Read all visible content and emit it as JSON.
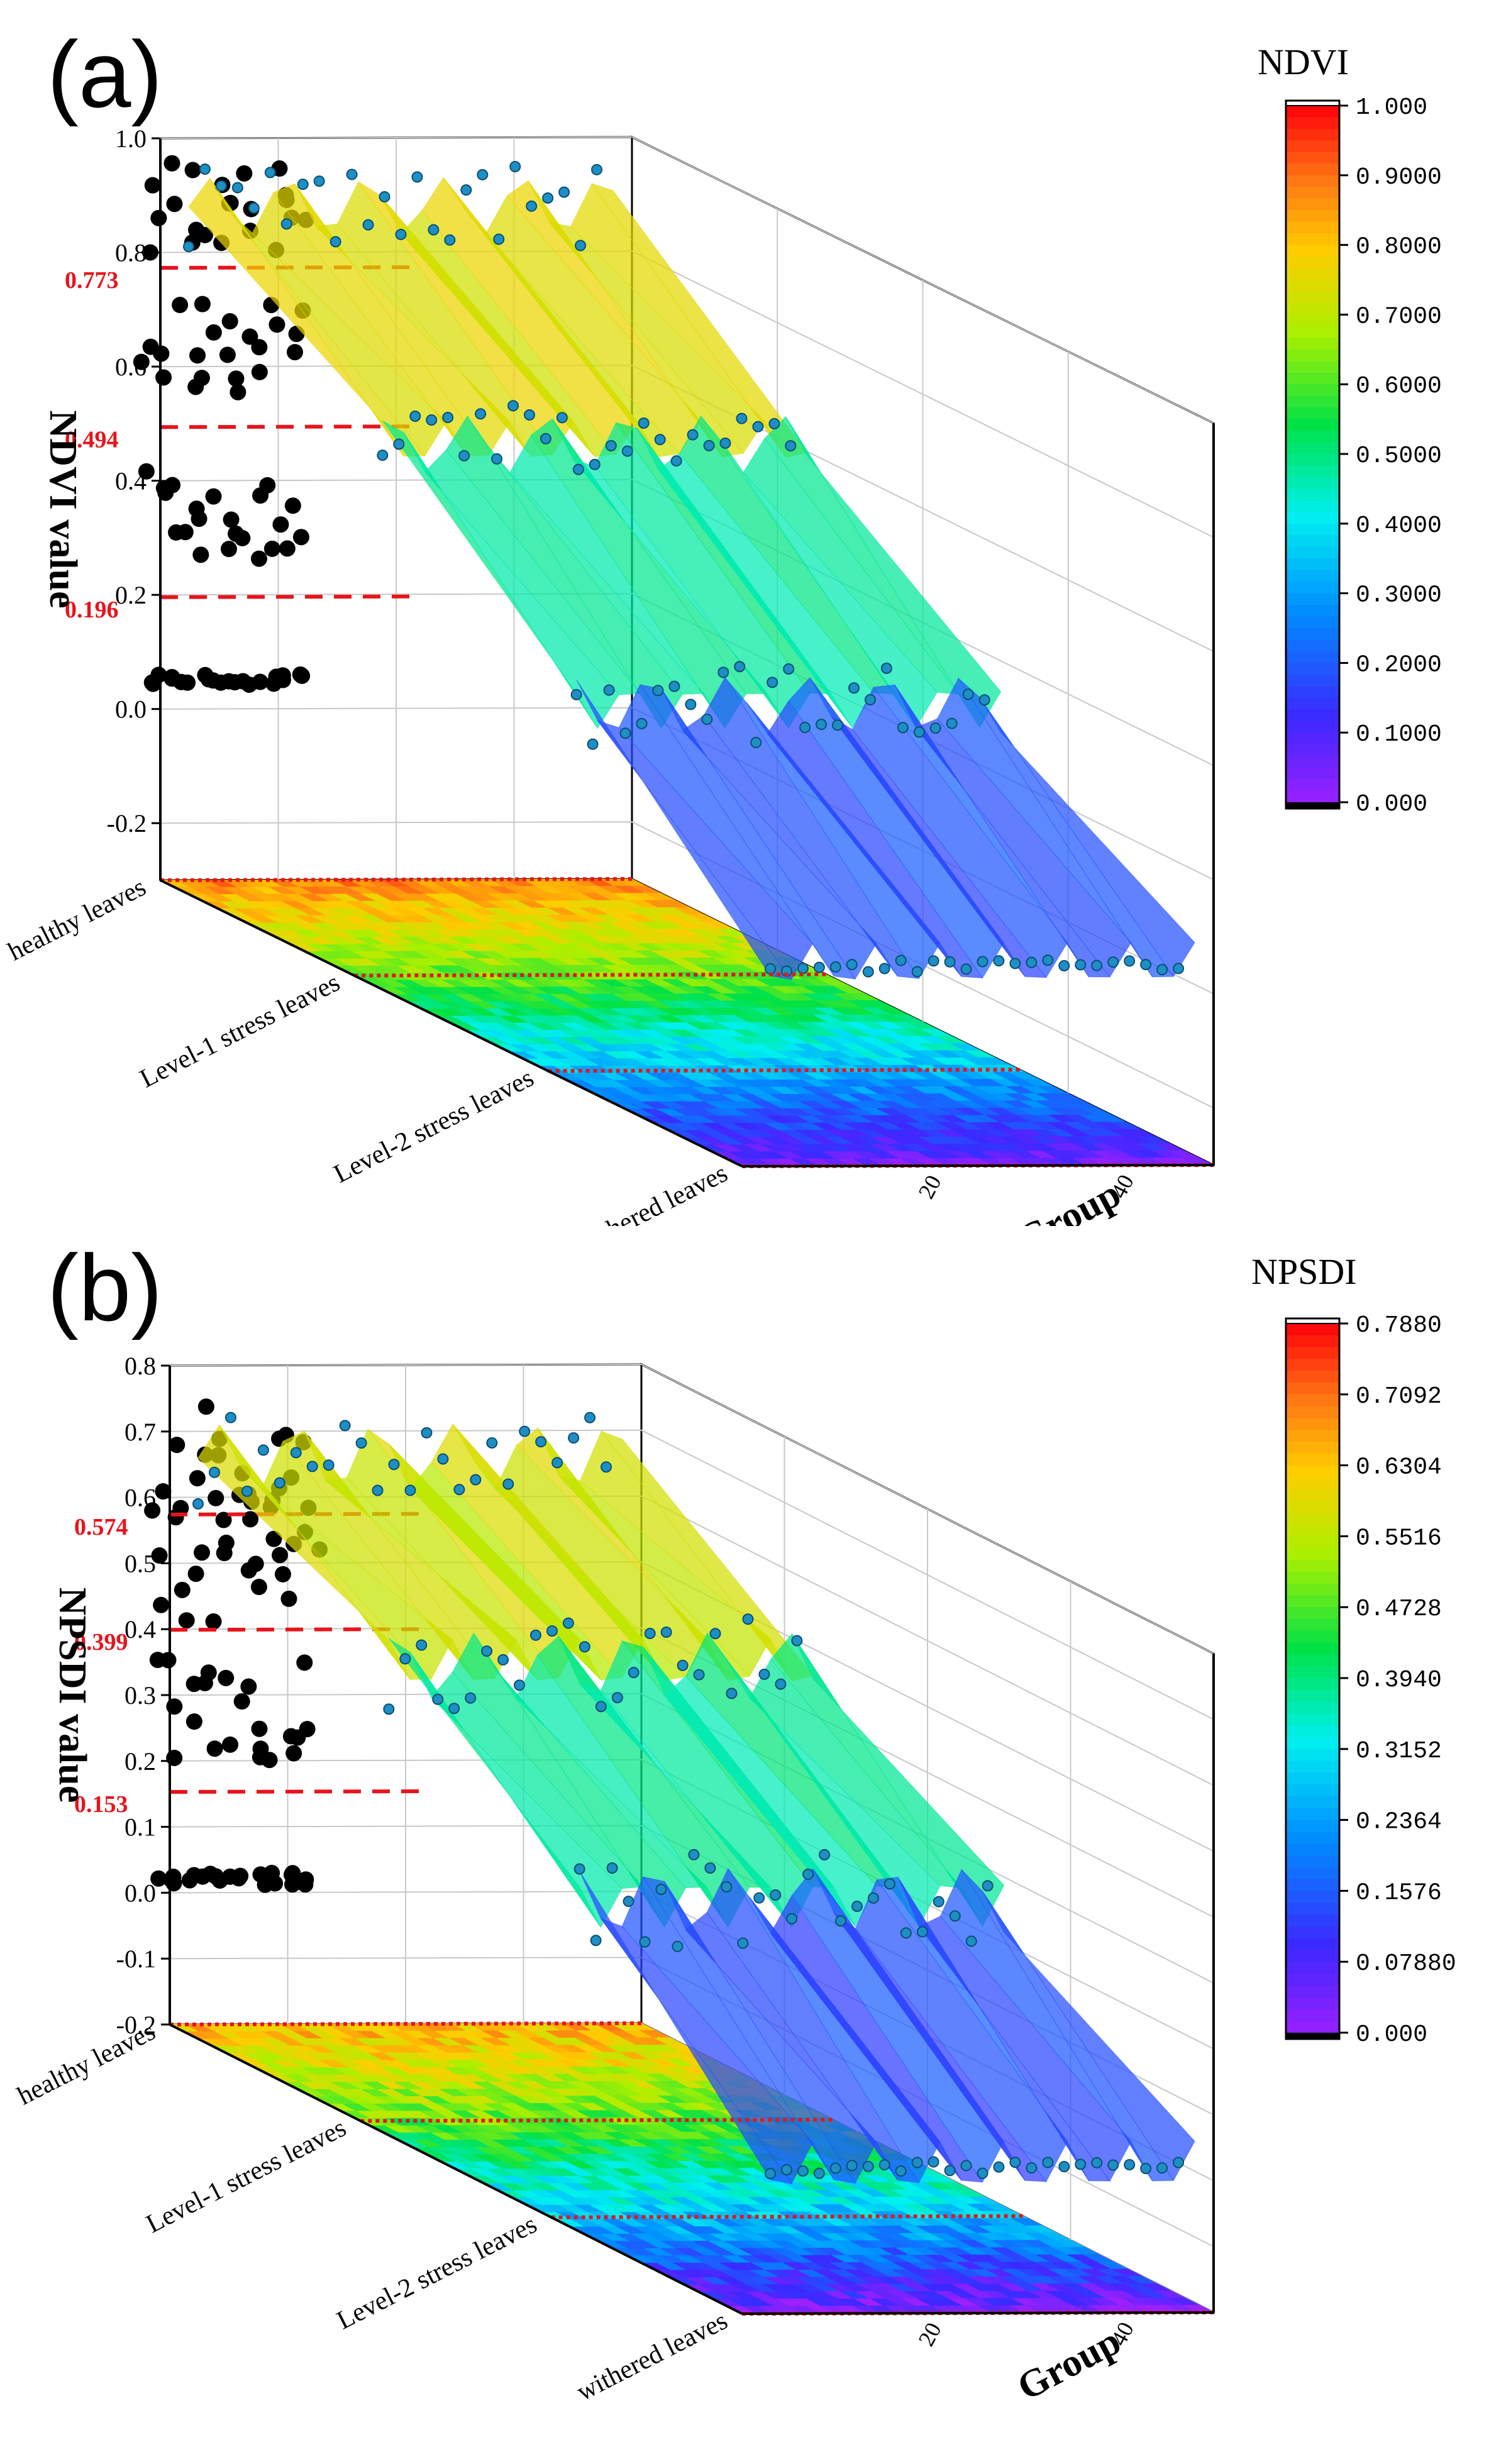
{
  "chart_data": [
    {
      "type": "surface3d",
      "panel_label": "(a)",
      "metric": "NDVI",
      "zlabel": "NDVI value",
      "ylabel": "Group",
      "categories": [
        "healthy leaves",
        "Level-1 stress leaves",
        "Level-2 stress leaves",
        "withered leaves"
      ],
      "z_ticks": [
        "1.0",
        "0.8",
        "0.6",
        "0.4",
        "0.2",
        "0.0",
        "-0.2"
      ],
      "zlim": [
        -0.3,
        1.0
      ],
      "group_ticks": [
        "20",
        "40"
      ],
      "group_range": [
        1,
        50
      ],
      "thresholds": [
        {
          "value": 0.773,
          "label": "0.773"
        },
        {
          "value": 0.494,
          "label": "0.494"
        },
        {
          "value": 0.196,
          "label": "0.196"
        }
      ],
      "category_means": [
        0.88,
        0.63,
        0.34,
        0.05
      ],
      "colorbar": {
        "title": "NDVI",
        "ticks": [
          "1.000",
          "0.9000",
          "0.8000",
          "0.7000",
          "0.6000",
          "0.5000",
          "0.4000",
          "0.3000",
          "0.2000",
          "0.1000",
          "0.000"
        ]
      }
    },
    {
      "type": "surface3d",
      "panel_label": "(b)",
      "metric": "NPSDI",
      "zlabel": "NPSDI value",
      "ylabel": "Group",
      "categories": [
        "healthy leaves",
        "Level-1 stress leaves",
        "Level-2 stress leaves",
        "withered leaves"
      ],
      "z_ticks": [
        "0.8",
        "0.7",
        "0.6",
        "0.5",
        "0.4",
        "0.3",
        "0.2",
        "0.1",
        "0.0",
        "-0.1",
        "-0.2"
      ],
      "zlim": [
        -0.2,
        0.8
      ],
      "group_ticks": [
        "20",
        "40"
      ],
      "group_range": [
        1,
        50
      ],
      "thresholds": [
        {
          "value": 0.574,
          "label": "0.574"
        },
        {
          "value": 0.399,
          "label": "0.399"
        },
        {
          "value": 0.153,
          "label": "0.153"
        }
      ],
      "category_means": [
        0.66,
        0.49,
        0.28,
        0.02
      ],
      "colorbar": {
        "title": "NPSDI",
        "ticks": [
          "0.7880",
          "0.7092",
          "0.6304",
          "0.5516",
          "0.4728",
          "0.3940",
          "0.3152",
          "0.2364",
          "0.1576",
          "0.07880",
          "0.000"
        ]
      }
    }
  ]
}
